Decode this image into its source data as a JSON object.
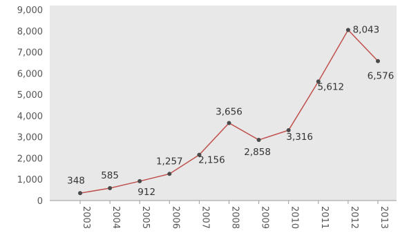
{
  "chart_data": {
    "type": "line",
    "title": "",
    "xlabel": "",
    "ylabel": "",
    "categories": [
      "2003",
      "2004",
      "2005",
      "2006",
      "2007",
      "2008",
      "2009",
      "2010",
      "2011",
      "2012",
      "2013"
    ],
    "series": [
      {
        "values": [
          348,
          585,
          912,
          1257,
          2156,
          3656,
          2858,
          3316,
          5612,
          8043,
          6576
        ]
      }
    ],
    "data_labels": [
      "348",
      "585",
      "912",
      "1,257",
      "2,156",
      "3,656",
      "2,858",
      "3,316",
      "5,612",
      "8,043",
      "6,576"
    ],
    "yticks": [
      "0",
      "1,000",
      "2,000",
      "3,000",
      "4,000",
      "5,000",
      "6,000",
      "7,000",
      "8,000",
      "9,000"
    ],
    "ylim": [
      0,
      9000
    ],
    "grid": false,
    "legend": "none",
    "colors": {
      "plot_background": "#e8e8e8",
      "line": "#c0504d",
      "marker": "#4a4a4a"
    }
  }
}
